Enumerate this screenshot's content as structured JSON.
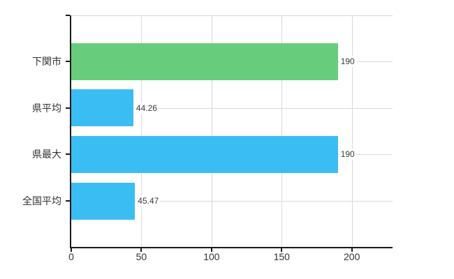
{
  "chart_data": {
    "type": "bar",
    "orientation": "horizontal",
    "title": "",
    "xlabel": "",
    "ylabel": "",
    "categories": [
      "下関市",
      "県平均",
      "県最大",
      "全国平均"
    ],
    "values": [
      190,
      44.26,
      190,
      45.47
    ],
    "value_labels": [
      "190",
      "44.26",
      "190",
      "45.47"
    ],
    "bar_colors": [
      "#67cd7d",
      "#3abdf2",
      "#3abdf2",
      "#3abdf2"
    ],
    "x_ticks": [
      0,
      50,
      100,
      150,
      200
    ],
    "x_tick_labels": [
      "0",
      "50",
      "100",
      "150",
      "200"
    ],
    "xlim": [
      0,
      229
    ],
    "grid": true,
    "legend": "none",
    "colors": {
      "highlight_bar": "#67cd7d",
      "default_bar": "#3abdf2",
      "gridline": "#d9d9d9",
      "axis": "#1a1a1a",
      "text": "#333333"
    }
  }
}
